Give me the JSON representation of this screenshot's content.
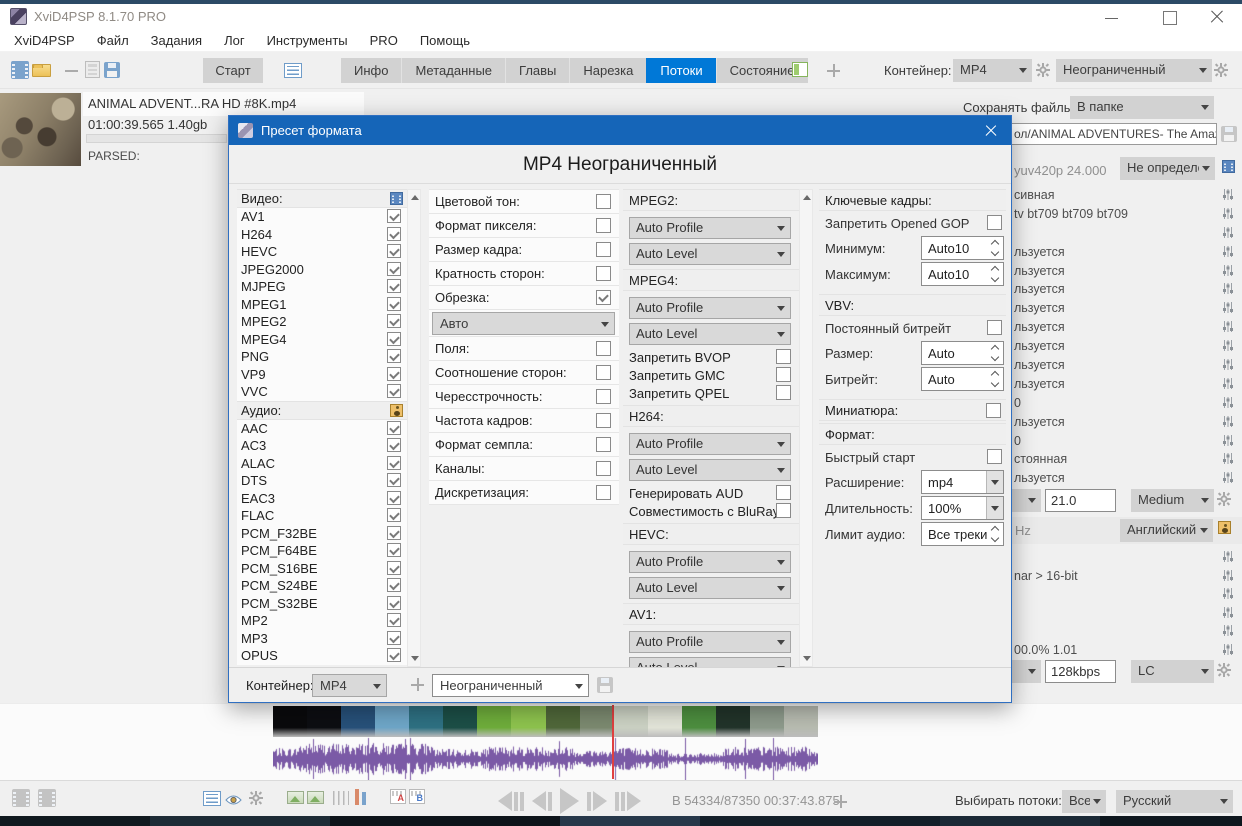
{
  "window": {
    "title": "XviD4PSP 8.1.70 PRO"
  },
  "menu": [
    "XviD4PSP",
    "Файл",
    "Задания",
    "Лог",
    "Инструменты",
    "PRO",
    "Помощь"
  ],
  "toolbar": {
    "start": "Старт",
    "tabs": [
      {
        "label": "Инфо",
        "active": false
      },
      {
        "label": "Метаданные",
        "active": false
      },
      {
        "label": "Главы",
        "active": false
      },
      {
        "label": "Нарезка",
        "active": false
      },
      {
        "label": "Потоки",
        "active": true
      },
      {
        "label": "Состояние",
        "active": false
      }
    ],
    "container_label": "Контейнер:",
    "container_value": "MP4",
    "preset_value": "Неограниченный"
  },
  "file_item": {
    "name": "ANIMAL ADVENT...RA HD #8K.mp4",
    "info": "01:00:39.565 1.40gb",
    "status": "PARSED:"
  },
  "save_row": {
    "label": "Сохранять файлы:",
    "value": "В папке"
  },
  "right_panel": {
    "path": "ол/ANIMAL ADVENTURES- The Amazi",
    "video_info": "yuv420p 24.000",
    "video_codec": "Не определен",
    "video_rows": [
      "сивная",
      "tv bt709 bt709 bt709",
      "",
      "льзуется",
      "льзуется",
      "льзуется",
      "льзуется",
      "льзуется",
      "льзуется",
      "льзуется",
      "льзуется",
      "0",
      "льзуется",
      "0",
      "стоянная",
      "льзуется"
    ],
    "video_quality": "21.0",
    "video_preset": "Medium",
    "audio_info": "Hz",
    "audio_lang": "Английский",
    "audio_rows": [
      "",
      "nar > 16-bit",
      "",
      "",
      "",
      "00.0% 1.01"
    ],
    "audio_bitrate": "128kbps",
    "audio_profile": "LC"
  },
  "dialog": {
    "title": "Пресет формата",
    "header": "MP4 Неограниченный",
    "video_label": "Видео:",
    "video_codecs": [
      "AV1",
      "H264",
      "HEVC",
      "JPEG2000",
      "MJPEG",
      "MPEG1",
      "MPEG2",
      "MPEG4",
      "PNG",
      "VP9",
      "VVC"
    ],
    "audio_label": "Аудио:",
    "audio_codecs": [
      "AAC",
      "AC3",
      "ALAC",
      "DTS",
      "EAC3",
      "FLAC",
      "PCM_F32BE",
      "PCM_F64BE",
      "PCM_S16BE",
      "PCM_S24BE",
      "PCM_S32BE",
      "MP2",
      "MP3",
      "OPUS"
    ],
    "options_top": [
      {
        "label": "Цветовой тон:",
        "checked": false
      },
      {
        "label": "Формат пикселя:",
        "checked": false
      },
      {
        "label": "Размер кадра:",
        "checked": false
      },
      {
        "label": "Кратность сторон:",
        "checked": false
      },
      {
        "label": "Обрезка:",
        "checked": true
      }
    ],
    "crop_mode": "Авто",
    "options_bottom": [
      {
        "label": "Поля:",
        "checked": false
      },
      {
        "label": "Соотношение сторон:",
        "checked": false
      },
      {
        "label": "Чересстрочность:",
        "checked": false
      },
      {
        "label": "Частота кадров:",
        "checked": false
      },
      {
        "label": "Формат семпла:",
        "checked": false
      },
      {
        "label": "Каналы:",
        "checked": false
      },
      {
        "label": "Дискретизация:",
        "checked": false
      }
    ],
    "codec_sections": [
      {
        "name": "MPEG2:",
        "profile": "Auto Profile",
        "level": "Auto Level",
        "checks": []
      },
      {
        "name": "MPEG4:",
        "profile": "Auto Profile",
        "level": "Auto Level",
        "checks": [
          "Запретить BVOP",
          "Запретить GMC",
          "Запретить QPEL"
        ]
      },
      {
        "name": "H264:",
        "profile": "Auto Profile",
        "level": "Auto Level",
        "checks": [
          "Генерировать AUD",
          "Совместимость с BluRay"
        ]
      },
      {
        "name": "HEVC:",
        "profile": "Auto Profile",
        "level": "Auto Level",
        "checks": []
      },
      {
        "name": "AV1:",
        "profile": "Auto Profile",
        "level": "Auto Level",
        "checks": []
      }
    ],
    "keyframes": {
      "label": "Ключевые кадры:",
      "gop": "Запретить Opened GOP",
      "min_label": "Минимум:",
      "min_value": "Auto10",
      "max_label": "Максимум:",
      "max_value": "Auto10"
    },
    "vbv": {
      "label": "VBV:",
      "cbr": "Постоянный битрейт",
      "size_label": "Размер:",
      "size_value": "Auto",
      "bitrate_label": "Битрейт:",
      "bitrate_value": "Auto"
    },
    "thumbnail_label": "Миниатюра:",
    "format": {
      "label": "Формат:",
      "fast_start": "Быстрый старт",
      "ext_label": "Расширение:",
      "ext_value": "mp4",
      "duration_label": "Длительность:",
      "duration_value": "100%",
      "audio_limit_label": "Лимит аудио:",
      "audio_limit_value": "Все треки"
    },
    "footer": {
      "container_label": "Контейнер:",
      "container_value": "MP4",
      "preset_value": "Неограниченный"
    }
  },
  "status_bar": {
    "position": "В 54334/87350 00:37:43.875",
    "streams_label": "Выбирать потоки:",
    "streams_value": "Все",
    "language_value": "Русский"
  },
  "colors": {
    "accent": "#0078d7",
    "dialog_title": "#1565b8",
    "waveform": "#7b5aa6",
    "playhead": "#e04040"
  },
  "timeline": {
    "segments": [
      "#0a0a0c",
      "#0d0e12",
      "#27517a",
      "#6fa7c9",
      "#2e7183",
      "#1c4f47",
      "#6fae3b",
      "#8ec44e",
      "#50683a",
      "#7c8a70",
      "#cdd3c5",
      "#e4e6da",
      "#4d8f3f",
      "#22342a",
      "#8e9b8c",
      "#b9bdb2"
    ]
  }
}
